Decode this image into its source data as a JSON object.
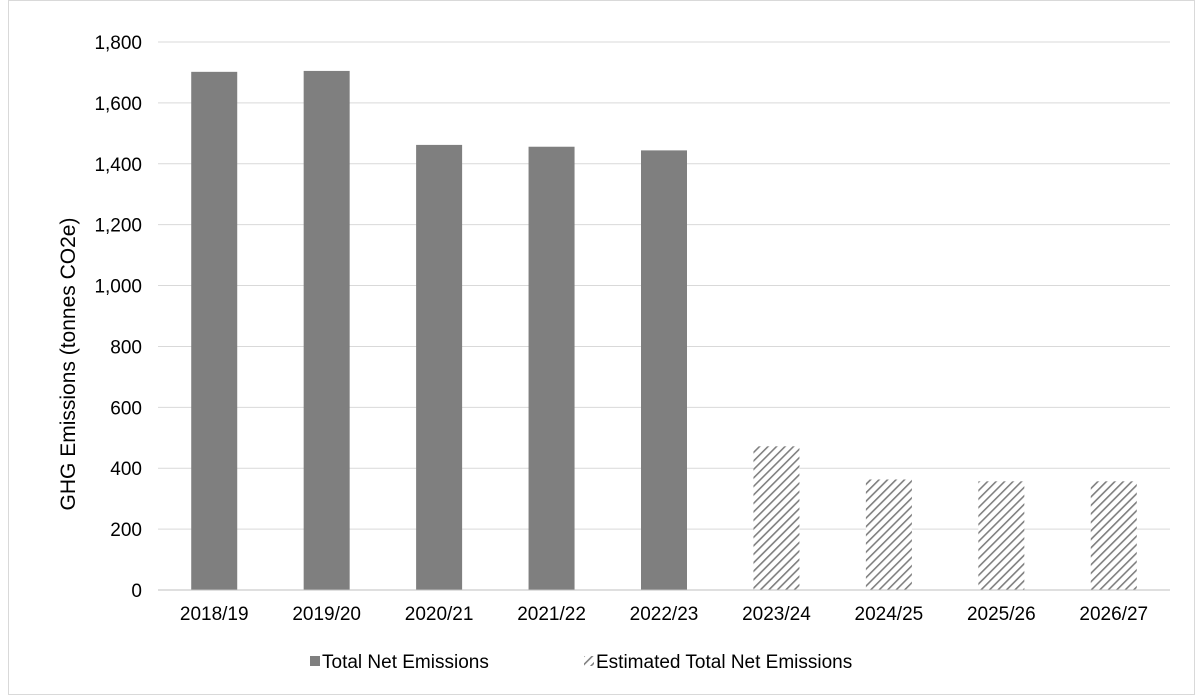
{
  "chart_data": {
    "type": "bar",
    "categories": [
      "2018/19",
      "2019/20",
      "2020/21",
      "2021/22",
      "2022/23",
      "2023/24",
      "2024/25",
      "2025/26",
      "2026/27"
    ],
    "series": [
      {
        "name": "Total Net Emissions",
        "style": "solid",
        "color": "#7f7f7f",
        "values": [
          1702,
          1705,
          1462,
          1456,
          1444,
          null,
          null,
          null,
          null
        ]
      },
      {
        "name": "Estimated Total Net Emissions",
        "style": "hatched",
        "color": "#7f7f7f",
        "values": [
          null,
          null,
          null,
          null,
          null,
          472,
          363,
          357,
          357
        ]
      }
    ],
    "title": "",
    "xlabel": "",
    "ylabel": "GHG Emissions (tonnes CO2e)",
    "ylim": [
      0,
      1800
    ],
    "yticks": [
      0,
      200,
      400,
      600,
      800,
      1000,
      1200,
      1400,
      1600,
      1800
    ],
    "ytick_labels": [
      "0",
      "200",
      "400",
      "600",
      "800",
      "1,000",
      "1,200",
      "1,400",
      "1,600",
      "1,800"
    ],
    "grid": "horizontal",
    "legend_position": "bottom",
    "colors": {
      "bar": "#7f7f7f",
      "gridline": "#d9d9d9",
      "axis": "#bfbfbf"
    }
  }
}
